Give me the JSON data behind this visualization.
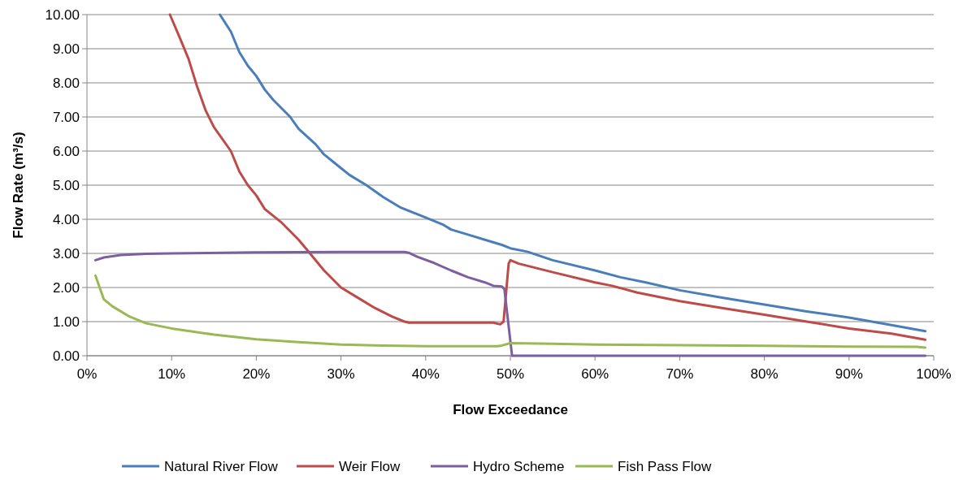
{
  "chart_data": {
    "type": "line",
    "xlabel": "Flow Exceedance",
    "ylabel": "Flow Rate (m³/s)",
    "xlim": [
      0,
      100
    ],
    "xticks": [
      {
        "value": 0,
        "label": "0%"
      },
      {
        "value": 10,
        "label": "10%"
      },
      {
        "value": 20,
        "label": "20%"
      },
      {
        "value": 30,
        "label": "30%"
      },
      {
        "value": 40,
        "label": "40%"
      },
      {
        "value": 50,
        "label": "50%"
      },
      {
        "value": 60,
        "label": "60%"
      },
      {
        "value": 70,
        "label": "70%"
      },
      {
        "value": 80,
        "label": "80%"
      },
      {
        "value": 90,
        "label": "90%"
      },
      {
        "value": 100,
        "label": "100%"
      }
    ],
    "ylim": [
      0,
      10
    ],
    "yticks": [
      {
        "value": 0,
        "label": "0.00"
      },
      {
        "value": 1,
        "label": "1.00"
      },
      {
        "value": 2,
        "label": "2.00"
      },
      {
        "value": 3,
        "label": "3.00"
      },
      {
        "value": 4,
        "label": "4.00"
      },
      {
        "value": 5,
        "label": "5.00"
      },
      {
        "value": 6,
        "label": "6.00"
      },
      {
        "value": 7,
        "label": "7.00"
      },
      {
        "value": 8,
        "label": "8.00"
      },
      {
        "value": 9,
        "label": "9.00"
      },
      {
        "value": 10,
        "label": "10.00"
      }
    ],
    "grid": "y",
    "legend": "bottom",
    "marker": "none",
    "line_style": "solid",
    "series": [
      {
        "name": "Natural River Flow",
        "color": "#4a7ebb",
        "x": [
          15.7,
          17,
          18,
          19,
          20,
          21,
          22,
          24,
          25,
          27,
          28,
          30,
          31,
          33,
          35,
          37,
          39,
          40,
          42,
          43,
          45,
          47,
          49,
          50,
          52,
          55,
          60,
          63,
          66,
          70,
          75,
          80,
          85,
          90,
          95,
          99
        ],
        "values": [
          10,
          9.5,
          8.9,
          8.5,
          8.2,
          7.8,
          7.5,
          7.0,
          6.65,
          6.2,
          5.9,
          5.5,
          5.3,
          5.0,
          4.65,
          4.35,
          4.15,
          4.05,
          3.85,
          3.7,
          3.55,
          3.4,
          3.25,
          3.15,
          3.05,
          2.8,
          2.5,
          2.3,
          2.15,
          1.92,
          1.7,
          1.5,
          1.3,
          1.12,
          0.9,
          0.72
        ]
      },
      {
        "name": "Weir Flow",
        "color": "#be4b48",
        "x": [
          9.8,
          11,
          12,
          13,
          14,
          15,
          17,
          18,
          19,
          20,
          21,
          23,
          25,
          26,
          28,
          30,
          32,
          34,
          36,
          37.5,
          38,
          40,
          45,
          48,
          48.8,
          49.2,
          49.8,
          50,
          51,
          55,
          60,
          62,
          65,
          70,
          75,
          80,
          85,
          90,
          95,
          99
        ],
        "values": [
          10,
          9.3,
          8.7,
          7.9,
          7.2,
          6.7,
          6.0,
          5.4,
          5.0,
          4.7,
          4.3,
          3.9,
          3.4,
          3.1,
          2.5,
          2.0,
          1.7,
          1.4,
          1.15,
          1.0,
          0.97,
          0.97,
          0.97,
          0.97,
          0.92,
          1.0,
          2.7,
          2.8,
          2.7,
          2.45,
          2.15,
          2.05,
          1.85,
          1.6,
          1.4,
          1.2,
          1.0,
          0.8,
          0.65,
          0.47
        ]
      },
      {
        "name": "Hydro Scheme",
        "color": "#7d5fa0",
        "x": [
          1,
          2,
          4,
          7,
          10,
          20,
          30,
          37.5,
          38,
          39,
          41,
          43,
          45,
          47,
          48,
          49,
          49.3,
          50.2,
          99
        ],
        "values": [
          2.8,
          2.88,
          2.95,
          2.99,
          3.0,
          3.03,
          3.04,
          3.04,
          3.02,
          2.9,
          2.72,
          2.5,
          2.3,
          2.15,
          2.05,
          2.03,
          1.95,
          0,
          0
        ]
      },
      {
        "name": "Fish Pass Flow",
        "color": "#98b954",
        "x": [
          1,
          1.5,
          2,
          3,
          4,
          5,
          7,
          10,
          15,
          20,
          25,
          30,
          35,
          40,
          48.5,
          49,
          50,
          55,
          60,
          70,
          80,
          90,
          98,
          99
        ],
        "values": [
          2.35,
          2.0,
          1.65,
          1.45,
          1.3,
          1.15,
          0.95,
          0.8,
          0.62,
          0.48,
          0.4,
          0.33,
          0.3,
          0.28,
          0.28,
          0.3,
          0.37,
          0.35,
          0.33,
          0.31,
          0.29,
          0.27,
          0.26,
          0.24
        ]
      }
    ]
  }
}
